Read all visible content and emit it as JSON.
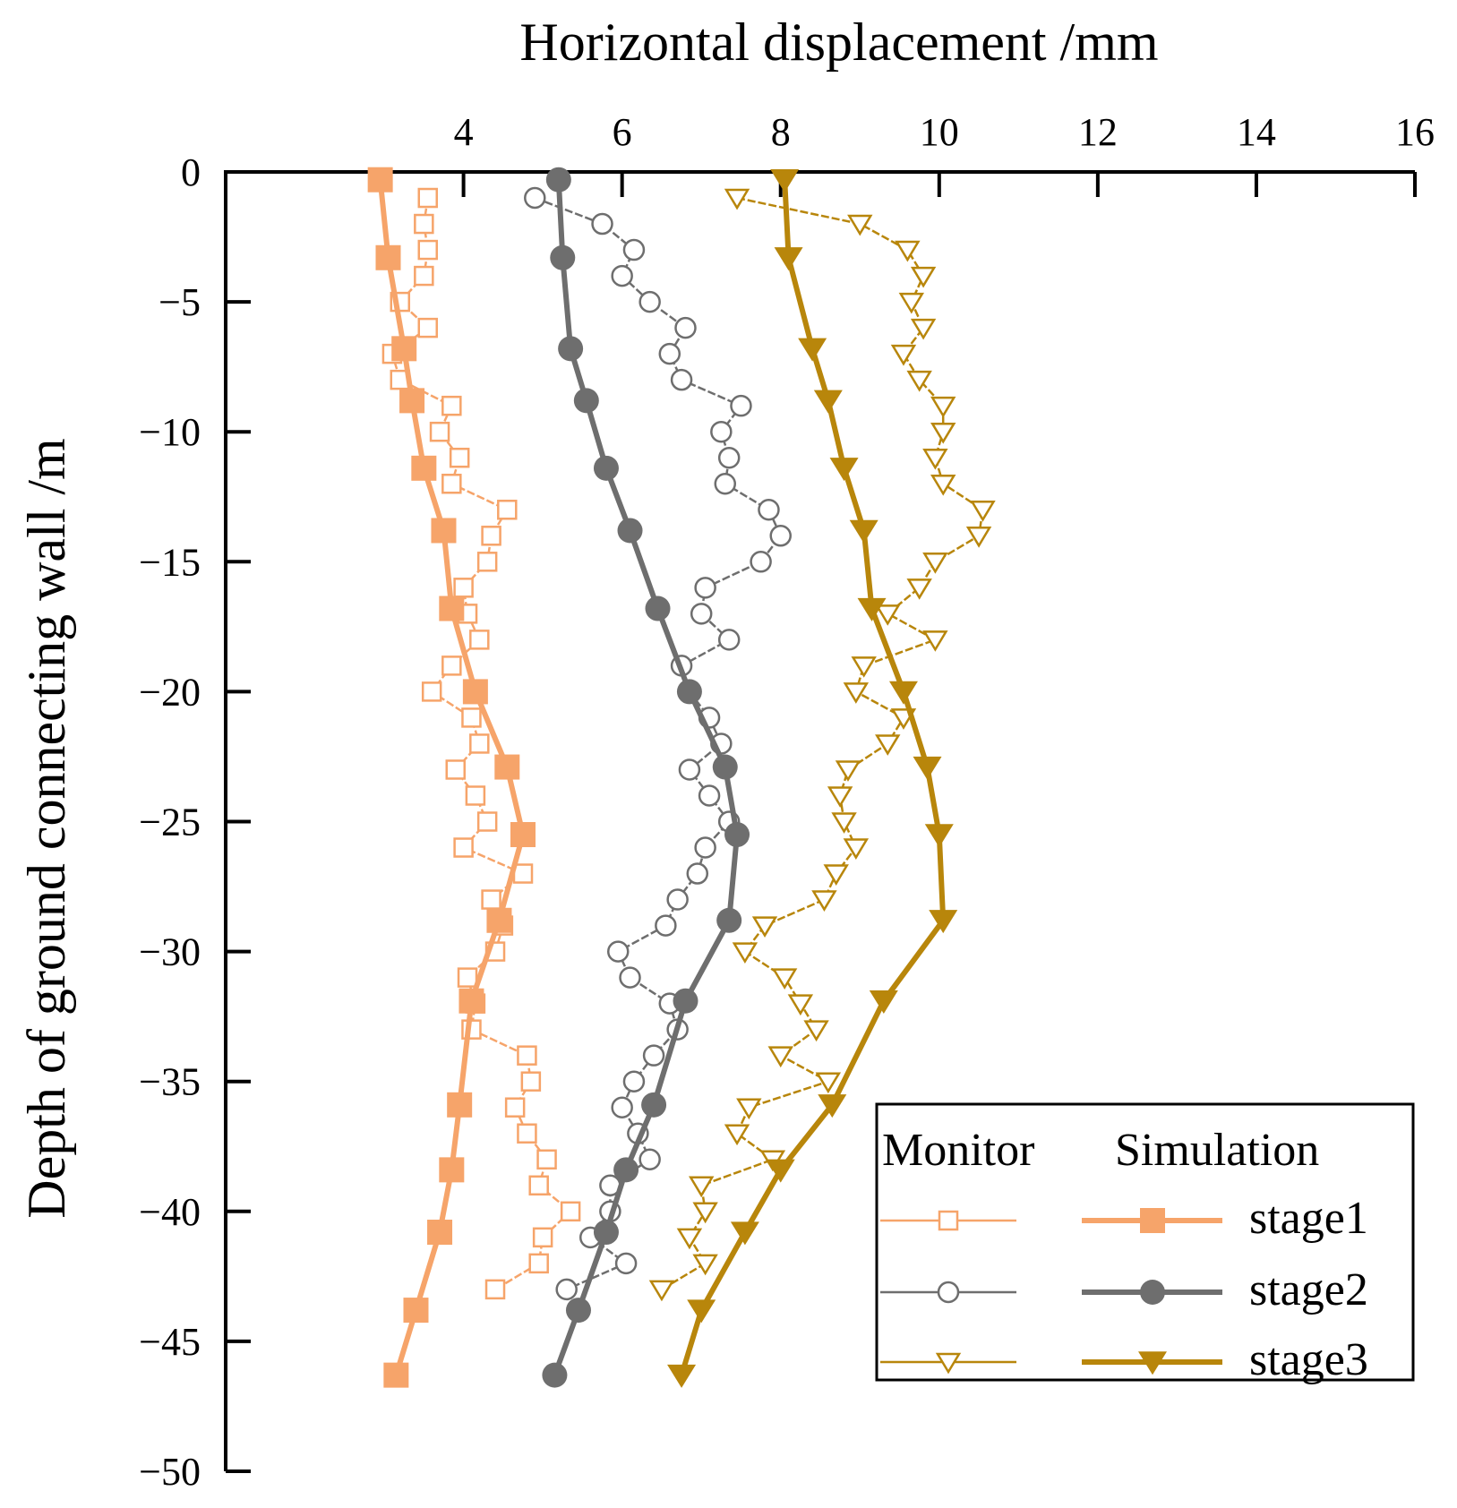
{
  "chart_data": {
    "type": "line",
    "xlabel": "Horizontal displacement /mm",
    "ylabel": "Depth of ground connecting wall /m",
    "xlim": [
      1,
      16
    ],
    "ylim": [
      -50,
      0
    ],
    "x_ticks": [
      4,
      6,
      8,
      10,
      12,
      14,
      16
    ],
    "y_ticks": [
      0,
      -5,
      -10,
      -15,
      -20,
      -25,
      -30,
      -35,
      -40,
      -45,
      -50
    ],
    "legend": {
      "position": "bottom-right",
      "header_monitor": "Monitor",
      "header_simulation": "Simulation",
      "entries": [
        "stage1",
        "stage2",
        "stage3"
      ]
    },
    "colors": {
      "stage1": "#F6A46A",
      "stage2": "#6E6E6E",
      "stage3": "#B8860B"
    },
    "series": [
      {
        "name": "stage1",
        "kind": "Monitor",
        "marker": "square-open",
        "points": [
          [
            3.55,
            -1
          ],
          [
            3.5,
            -2
          ],
          [
            3.55,
            -3
          ],
          [
            3.5,
            -4
          ],
          [
            3.2,
            -5
          ],
          [
            3.55,
            -6
          ],
          [
            3.1,
            -7
          ],
          [
            3.2,
            -8
          ],
          [
            3.85,
            -9
          ],
          [
            3.7,
            -10
          ],
          [
            3.95,
            -11
          ],
          [
            3.85,
            -12
          ],
          [
            4.55,
            -13
          ],
          [
            4.35,
            -14
          ],
          [
            4.3,
            -15
          ],
          [
            4,
            -16
          ],
          [
            4.05,
            -17
          ],
          [
            4.2,
            -18
          ],
          [
            3.85,
            -19
          ],
          [
            3.6,
            -20
          ],
          [
            4.1,
            -21
          ],
          [
            4.2,
            -22
          ],
          [
            3.9,
            -23
          ],
          [
            4.15,
            -24
          ],
          [
            4.3,
            -25
          ],
          [
            4.0,
            -26
          ],
          [
            4.75,
            -27
          ],
          [
            4.35,
            -28
          ],
          [
            4.5,
            -29
          ],
          [
            4.4,
            -30
          ],
          [
            4.05,
            -31
          ],
          [
            4.15,
            -32
          ],
          [
            4.1,
            -33
          ],
          [
            4.8,
            -34
          ],
          [
            4.85,
            -35
          ],
          [
            4.65,
            -36
          ],
          [
            4.8,
            -37
          ],
          [
            5.05,
            -38
          ],
          [
            4.95,
            -39
          ],
          [
            5.35,
            -40
          ],
          [
            5.0,
            -41
          ],
          [
            4.95,
            -42
          ],
          [
            4.4,
            -43
          ]
        ]
      },
      {
        "name": "stage1",
        "kind": "Simulation",
        "marker": "square-filled",
        "points": [
          [
            2.95,
            -0.3
          ],
          [
            3.05,
            -3.3
          ],
          [
            3.25,
            -6.8
          ],
          [
            3.35,
            -8.8
          ],
          [
            3.5,
            -11.4
          ],
          [
            3.75,
            -13.8
          ],
          [
            3.85,
            -16.8
          ],
          [
            4.15,
            -20
          ],
          [
            4.55,
            -22.9
          ],
          [
            4.75,
            -25.5
          ],
          [
            4.45,
            -28.8
          ],
          [
            4.1,
            -31.9
          ],
          [
            3.95,
            -35.9
          ],
          [
            3.85,
            -38.4
          ],
          [
            3.7,
            -40.8
          ],
          [
            3.4,
            -43.8
          ],
          [
            3.15,
            -46.3
          ]
        ]
      },
      {
        "name": "stage2",
        "kind": "Monitor",
        "marker": "circle-open",
        "points": [
          [
            4.9,
            -1
          ],
          [
            5.75,
            -2
          ],
          [
            6.15,
            -3
          ],
          [
            6.0,
            -4
          ],
          [
            6.35,
            -5
          ],
          [
            6.8,
            -6
          ],
          [
            6.6,
            -7
          ],
          [
            6.75,
            -8
          ],
          [
            7.5,
            -9
          ],
          [
            7.25,
            -10
          ],
          [
            7.35,
            -11
          ],
          [
            7.3,
            -12
          ],
          [
            7.85,
            -13
          ],
          [
            8.0,
            -14
          ],
          [
            7.75,
            -15
          ],
          [
            7.05,
            -16
          ],
          [
            7.0,
            -17
          ],
          [
            7.35,
            -18
          ],
          [
            6.75,
            -19
          ],
          [
            6.85,
            -20
          ],
          [
            7.1,
            -21
          ],
          [
            7.25,
            -22
          ],
          [
            6.85,
            -23
          ],
          [
            7.1,
            -24
          ],
          [
            7.35,
            -25
          ],
          [
            7.05,
            -26
          ],
          [
            6.95,
            -27
          ],
          [
            6.7,
            -28
          ],
          [
            6.55,
            -29
          ],
          [
            5.95,
            -30
          ],
          [
            6.1,
            -31
          ],
          [
            6.6,
            -32
          ],
          [
            6.7,
            -33
          ],
          [
            6.4,
            -34
          ],
          [
            6.15,
            -35
          ],
          [
            6.0,
            -36
          ],
          [
            6.2,
            -37
          ],
          [
            6.35,
            -38
          ],
          [
            5.85,
            -39
          ],
          [
            5.85,
            -40
          ],
          [
            5.6,
            -41
          ],
          [
            6.05,
            -42
          ],
          [
            5.3,
            -43
          ]
        ]
      },
      {
        "name": "stage2",
        "kind": "Simulation",
        "marker": "circle-filled",
        "points": [
          [
            5.2,
            -0.3
          ],
          [
            5.25,
            -3.3
          ],
          [
            5.35,
            -6.8
          ],
          [
            5.55,
            -8.8
          ],
          [
            5.8,
            -11.4
          ],
          [
            6.1,
            -13.8
          ],
          [
            6.45,
            -16.8
          ],
          [
            6.85,
            -20
          ],
          [
            7.3,
            -22.9
          ],
          [
            7.45,
            -25.5
          ],
          [
            7.35,
            -28.8
          ],
          [
            6.8,
            -31.9
          ],
          [
            6.4,
            -35.9
          ],
          [
            6.05,
            -38.4
          ],
          [
            5.8,
            -40.8
          ],
          [
            5.45,
            -43.8
          ],
          [
            5.15,
            -46.3
          ]
        ]
      },
      {
        "name": "stage3",
        "kind": "Monitor",
        "marker": "triangle-down-open",
        "points": [
          [
            7.45,
            -1
          ],
          [
            9.0,
            -2
          ],
          [
            9.6,
            -3
          ],
          [
            9.8,
            -4
          ],
          [
            9.65,
            -5
          ],
          [
            9.8,
            -6
          ],
          [
            9.55,
            -7
          ],
          [
            9.75,
            -8
          ],
          [
            10.05,
            -9
          ],
          [
            10.05,
            -10
          ],
          [
            9.95,
            -11
          ],
          [
            10.05,
            -12
          ],
          [
            10.55,
            -13
          ],
          [
            10.5,
            -14
          ],
          [
            9.95,
            -15
          ],
          [
            9.75,
            -16
          ],
          [
            9.35,
            -17
          ],
          [
            9.95,
            -18
          ],
          [
            9.05,
            -19
          ],
          [
            8.95,
            -20
          ],
          [
            9.55,
            -21
          ],
          [
            9.35,
            -22
          ],
          [
            8.85,
            -23
          ],
          [
            8.75,
            -24
          ],
          [
            8.8,
            -25
          ],
          [
            8.95,
            -26
          ],
          [
            8.7,
            -27
          ],
          [
            8.55,
            -28
          ],
          [
            7.8,
            -29
          ],
          [
            7.55,
            -30
          ],
          [
            8.05,
            -31
          ],
          [
            8.25,
            -32
          ],
          [
            8.45,
            -33
          ],
          [
            8.0,
            -34
          ],
          [
            8.6,
            -35
          ],
          [
            7.6,
            -36
          ],
          [
            7.45,
            -37
          ],
          [
            7.9,
            -38
          ],
          [
            7.0,
            -39
          ],
          [
            7.05,
            -40
          ],
          [
            6.85,
            -41
          ],
          [
            7.05,
            -42
          ],
          [
            6.5,
            -43
          ]
        ]
      },
      {
        "name": "stage3",
        "kind": "Simulation",
        "marker": "triangle-down-filled",
        "points": [
          [
            8.05,
            -0.3
          ],
          [
            8.1,
            -3.3
          ],
          [
            8.4,
            -6.8
          ],
          [
            8.6,
            -8.8
          ],
          [
            8.8,
            -11.4
          ],
          [
            9.05,
            -13.8
          ],
          [
            9.15,
            -16.8
          ],
          [
            9.55,
            -20
          ],
          [
            9.85,
            -22.9
          ],
          [
            10.0,
            -25.5
          ],
          [
            10.05,
            -28.8
          ],
          [
            9.3,
            -31.9
          ],
          [
            8.65,
            -35.9
          ],
          [
            8.0,
            -38.4
          ],
          [
            7.55,
            -40.8
          ],
          [
            7.0,
            -43.8
          ],
          [
            6.75,
            -46.3
          ]
        ]
      }
    ]
  }
}
